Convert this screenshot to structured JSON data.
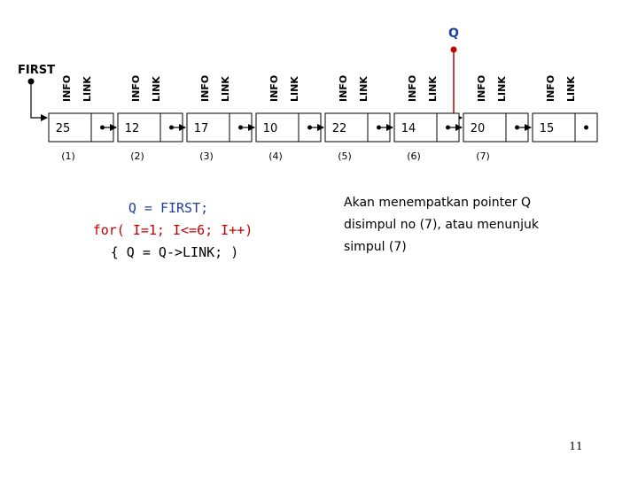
{
  "first_label": "FIRST",
  "q_label": "Q",
  "nodes": [
    {
      "info_header": "INFO",
      "link_header": "LINK",
      "info": "25",
      "number": "(1)"
    },
    {
      "info_header": "INFO",
      "link_header": "LINK",
      "info": "12",
      "number": "(2)"
    },
    {
      "info_header": "INFO",
      "link_header": "LINK",
      "info": "17",
      "number": "(3)"
    },
    {
      "info_header": "INFO",
      "link_header": "LINK",
      "info": "10",
      "number": "(4)"
    },
    {
      "info_header": "INFO",
      "link_header": "LINK",
      "info": "22",
      "number": "(5)"
    },
    {
      "info_header": "INFO",
      "link_header": "LINK",
      "info": "14",
      "number": "(6)"
    },
    {
      "info_header": "INFO",
      "link_header": "LINK",
      "info": "20",
      "number": "(7)"
    },
    {
      "info_header": "INFO",
      "link_header": "LINK",
      "info": "15"
    }
  ],
  "code": [
    "Q = FIRST;",
    "for( I=1; I<=6; I++)",
    "{ Q = Q->LINK; )"
  ],
  "description": [
    "Akan menempatkan pointer Q",
    "disimpul no (7), atau menunjuk",
    "simpul (7)"
  ],
  "page_number": "11"
}
